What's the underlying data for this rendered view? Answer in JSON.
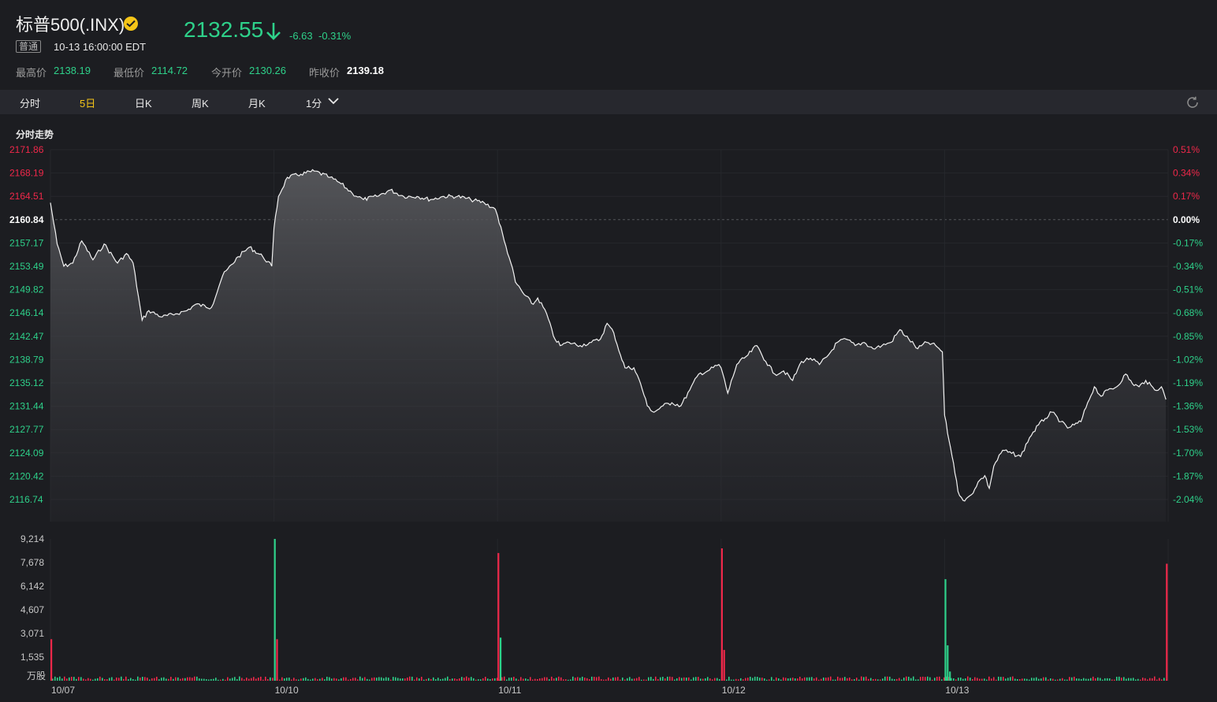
{
  "header": {
    "title": "标普500(.INX)",
    "market_tag": "普通",
    "timestamp": "10-13 16:00:00 EDT",
    "price": "2132.55",
    "change": "-6.63",
    "change_pct": "-0.31%",
    "stats": [
      {
        "label": "最高价",
        "value": "2138.19",
        "color": "#2ed18a"
      },
      {
        "label": "最低价",
        "value": "2114.72",
        "color": "#2ed18a"
      },
      {
        "label": "今开价",
        "value": "2130.26",
        "color": "#2ed18a"
      },
      {
        "label": "昨收价",
        "value": "2139.18",
        "color": "#ffffff"
      }
    ]
  },
  "tabs": [
    {
      "label": "分时",
      "active": false
    },
    {
      "label": "5日",
      "active": true
    },
    {
      "label": "日K",
      "active": false
    },
    {
      "label": "周K",
      "active": false
    },
    {
      "label": "月K",
      "active": false
    },
    {
      "label": "1分",
      "active": false
    }
  ],
  "section_title": "分时走势",
  "colors": {
    "up": "#f0284a",
    "down": "#2ed18a",
    "neutral": "#ffffff",
    "accent": "#f5c518"
  },
  "chart_data": {
    "type": "area",
    "y_ticks_price": [
      "2171.86",
      "2168.19",
      "2164.51",
      "2160.84",
      "2157.17",
      "2153.49",
      "2149.82",
      "2146.14",
      "2142.47",
      "2138.79",
      "2135.12",
      "2131.44",
      "2127.77",
      "2124.09",
      "2120.42",
      "2116.74"
    ],
    "y_ticks_pct": [
      "0.51%",
      "0.34%",
      "0.17%",
      "0.00%",
      "-0.17%",
      "-0.34%",
      "-0.51%",
      "-0.68%",
      "-0.85%",
      "-1.02%",
      "-1.19%",
      "-1.36%",
      "-1.53%",
      "-1.70%",
      "-1.87%",
      "-2.04%"
    ],
    "ylim": [
      2116.74,
      2171.86
    ],
    "reference_price": 2160.84,
    "x_labels": [
      "10/07",
      "10/10",
      "10/11",
      "10/12",
      "10/13"
    ],
    "price_keypoints": [
      {
        "day": 0,
        "frac": 0.0,
        "price": 2163.5
      },
      {
        "day": 0,
        "frac": 0.03,
        "price": 2157.0
      },
      {
        "day": 0,
        "frac": 0.06,
        "price": 2153.5
      },
      {
        "day": 0,
        "frac": 0.1,
        "price": 2154.0
      },
      {
        "day": 0,
        "frac": 0.14,
        "price": 2157.5
      },
      {
        "day": 0,
        "frac": 0.19,
        "price": 2154.5
      },
      {
        "day": 0,
        "frac": 0.24,
        "price": 2157.0
      },
      {
        "day": 0,
        "frac": 0.3,
        "price": 2154.0
      },
      {
        "day": 0,
        "frac": 0.34,
        "price": 2155.5
      },
      {
        "day": 0,
        "frac": 0.37,
        "price": 2154.0
      },
      {
        "day": 0,
        "frac": 0.41,
        "price": 2145.0
      },
      {
        "day": 0,
        "frac": 0.44,
        "price": 2146.5
      },
      {
        "day": 0,
        "frac": 0.5,
        "price": 2145.5
      },
      {
        "day": 0,
        "frac": 0.56,
        "price": 2146.0
      },
      {
        "day": 0,
        "frac": 0.61,
        "price": 2146.5
      },
      {
        "day": 0,
        "frac": 0.65,
        "price": 2147.5
      },
      {
        "day": 0,
        "frac": 0.72,
        "price": 2147.0
      },
      {
        "day": 0,
        "frac": 0.77,
        "price": 2152.0
      },
      {
        "day": 0,
        "frac": 0.84,
        "price": 2155.0
      },
      {
        "day": 0,
        "frac": 0.89,
        "price": 2156.5
      },
      {
        "day": 0,
        "frac": 0.95,
        "price": 2155.0
      },
      {
        "day": 0,
        "frac": 0.99,
        "price": 2153.5
      },
      {
        "day": 1,
        "frac": 0.0,
        "price": 2159.5
      },
      {
        "day": 1,
        "frac": 0.02,
        "price": 2164.5
      },
      {
        "day": 1,
        "frac": 0.06,
        "price": 2167.5
      },
      {
        "day": 1,
        "frac": 0.12,
        "price": 2168.0
      },
      {
        "day": 1,
        "frac": 0.18,
        "price": 2168.5
      },
      {
        "day": 1,
        "frac": 0.25,
        "price": 2167.5
      },
      {
        "day": 1,
        "frac": 0.3,
        "price": 2166.5
      },
      {
        "day": 1,
        "frac": 0.35,
        "price": 2165.0
      },
      {
        "day": 1,
        "frac": 0.4,
        "price": 2164.0
      },
      {
        "day": 1,
        "frac": 0.46,
        "price": 2164.5
      },
      {
        "day": 1,
        "frac": 0.52,
        "price": 2165.5
      },
      {
        "day": 1,
        "frac": 0.58,
        "price": 2164.5
      },
      {
        "day": 1,
        "frac": 0.64,
        "price": 2164.5
      },
      {
        "day": 1,
        "frac": 0.7,
        "price": 2164.0
      },
      {
        "day": 1,
        "frac": 0.76,
        "price": 2164.5
      },
      {
        "day": 1,
        "frac": 0.82,
        "price": 2164.5
      },
      {
        "day": 1,
        "frac": 0.88,
        "price": 2164.0
      },
      {
        "day": 1,
        "frac": 0.94,
        "price": 2163.5
      },
      {
        "day": 1,
        "frac": 0.99,
        "price": 2162.5
      },
      {
        "day": 2,
        "frac": 0.0,
        "price": 2161.5
      },
      {
        "day": 2,
        "frac": 0.03,
        "price": 2157.5
      },
      {
        "day": 2,
        "frac": 0.06,
        "price": 2154.0
      },
      {
        "day": 2,
        "frac": 0.08,
        "price": 2151.0
      },
      {
        "day": 2,
        "frac": 0.12,
        "price": 2149.0
      },
      {
        "day": 2,
        "frac": 0.16,
        "price": 2147.5
      },
      {
        "day": 2,
        "frac": 0.18,
        "price": 2148.5
      },
      {
        "day": 2,
        "frac": 0.22,
        "price": 2146.0
      },
      {
        "day": 2,
        "frac": 0.25,
        "price": 2142.5
      },
      {
        "day": 2,
        "frac": 0.28,
        "price": 2141.0
      },
      {
        "day": 2,
        "frac": 0.32,
        "price": 2141.5
      },
      {
        "day": 2,
        "frac": 0.37,
        "price": 2141.0
      },
      {
        "day": 2,
        "frac": 0.42,
        "price": 2141.5
      },
      {
        "day": 2,
        "frac": 0.46,
        "price": 2142.0
      },
      {
        "day": 2,
        "frac": 0.49,
        "price": 2144.5
      },
      {
        "day": 2,
        "frac": 0.52,
        "price": 2143.0
      },
      {
        "day": 2,
        "frac": 0.55,
        "price": 2139.5
      },
      {
        "day": 2,
        "frac": 0.57,
        "price": 2137.5
      },
      {
        "day": 2,
        "frac": 0.61,
        "price": 2137.5
      },
      {
        "day": 2,
        "frac": 0.64,
        "price": 2135.0
      },
      {
        "day": 2,
        "frac": 0.67,
        "price": 2131.5
      },
      {
        "day": 2,
        "frac": 0.7,
        "price": 2130.5
      },
      {
        "day": 2,
        "frac": 0.74,
        "price": 2131.5
      },
      {
        "day": 2,
        "frac": 0.78,
        "price": 2132.0
      },
      {
        "day": 2,
        "frac": 0.82,
        "price": 2131.5
      },
      {
        "day": 2,
        "frac": 0.86,
        "price": 2134.0
      },
      {
        "day": 2,
        "frac": 0.9,
        "price": 2136.5
      },
      {
        "day": 2,
        "frac": 0.94,
        "price": 2137.0
      },
      {
        "day": 2,
        "frac": 0.99,
        "price": 2138.0
      },
      {
        "day": 3,
        "frac": 0.0,
        "price": 2137.5
      },
      {
        "day": 3,
        "frac": 0.03,
        "price": 2133.5
      },
      {
        "day": 3,
        "frac": 0.07,
        "price": 2138.0
      },
      {
        "day": 3,
        "frac": 0.12,
        "price": 2139.5
      },
      {
        "day": 3,
        "frac": 0.16,
        "price": 2141.0
      },
      {
        "day": 3,
        "frac": 0.2,
        "price": 2138.5
      },
      {
        "day": 3,
        "frac": 0.24,
        "price": 2136.5
      },
      {
        "day": 3,
        "frac": 0.28,
        "price": 2137.0
      },
      {
        "day": 3,
        "frac": 0.32,
        "price": 2135.5
      },
      {
        "day": 3,
        "frac": 0.36,
        "price": 2138.5
      },
      {
        "day": 3,
        "frac": 0.4,
        "price": 2139.0
      },
      {
        "day": 3,
        "frac": 0.44,
        "price": 2138.0
      },
      {
        "day": 3,
        "frac": 0.48,
        "price": 2139.5
      },
      {
        "day": 3,
        "frac": 0.52,
        "price": 2141.5
      },
      {
        "day": 3,
        "frac": 0.56,
        "price": 2142.0
      },
      {
        "day": 3,
        "frac": 0.6,
        "price": 2141.0
      },
      {
        "day": 3,
        "frac": 0.64,
        "price": 2141.5
      },
      {
        "day": 3,
        "frac": 0.68,
        "price": 2140.5
      },
      {
        "day": 3,
        "frac": 0.72,
        "price": 2141.0
      },
      {
        "day": 3,
        "frac": 0.76,
        "price": 2141.5
      },
      {
        "day": 3,
        "frac": 0.8,
        "price": 2143.5
      },
      {
        "day": 3,
        "frac": 0.84,
        "price": 2142.0
      },
      {
        "day": 3,
        "frac": 0.88,
        "price": 2140.5
      },
      {
        "day": 3,
        "frac": 0.92,
        "price": 2141.5
      },
      {
        "day": 3,
        "frac": 0.96,
        "price": 2141.0
      },
      {
        "day": 3,
        "frac": 0.99,
        "price": 2140.0
      },
      {
        "day": 4,
        "frac": 0.0,
        "price": 2130.0
      },
      {
        "day": 4,
        "frac": 0.02,
        "price": 2126.0
      },
      {
        "day": 4,
        "frac": 0.04,
        "price": 2122.5
      },
      {
        "day": 4,
        "frac": 0.06,
        "price": 2118.0
      },
      {
        "day": 4,
        "frac": 0.09,
        "price": 2116.5
      },
      {
        "day": 4,
        "frac": 0.12,
        "price": 2117.5
      },
      {
        "day": 4,
        "frac": 0.15,
        "price": 2119.5
      },
      {
        "day": 4,
        "frac": 0.18,
        "price": 2120.5
      },
      {
        "day": 4,
        "frac": 0.2,
        "price": 2118.5
      },
      {
        "day": 4,
        "frac": 0.22,
        "price": 2122.0
      },
      {
        "day": 4,
        "frac": 0.26,
        "price": 2124.5
      },
      {
        "day": 4,
        "frac": 0.3,
        "price": 2124.0
      },
      {
        "day": 4,
        "frac": 0.34,
        "price": 2123.5
      },
      {
        "day": 4,
        "frac": 0.38,
        "price": 2126.5
      },
      {
        "day": 4,
        "frac": 0.42,
        "price": 2128.5
      },
      {
        "day": 4,
        "frac": 0.45,
        "price": 2129.5
      },
      {
        "day": 4,
        "frac": 0.48,
        "price": 2130.5
      },
      {
        "day": 4,
        "frac": 0.52,
        "price": 2129.0
      },
      {
        "day": 4,
        "frac": 0.55,
        "price": 2128.0
      },
      {
        "day": 4,
        "frac": 0.58,
        "price": 2128.5
      },
      {
        "day": 4,
        "frac": 0.61,
        "price": 2129.0
      },
      {
        "day": 4,
        "frac": 0.64,
        "price": 2132.0
      },
      {
        "day": 4,
        "frac": 0.67,
        "price": 2134.5
      },
      {
        "day": 4,
        "frac": 0.7,
        "price": 2133.0
      },
      {
        "day": 4,
        "frac": 0.73,
        "price": 2134.0
      },
      {
        "day": 4,
        "frac": 0.77,
        "price": 2134.5
      },
      {
        "day": 4,
        "frac": 0.81,
        "price": 2136.5
      },
      {
        "day": 4,
        "frac": 0.84,
        "price": 2135.0
      },
      {
        "day": 4,
        "frac": 0.87,
        "price": 2134.5
      },
      {
        "day": 4,
        "frac": 0.9,
        "price": 2135.5
      },
      {
        "day": 4,
        "frac": 0.94,
        "price": 2134.0
      },
      {
        "day": 4,
        "frac": 0.97,
        "price": 2134.5
      },
      {
        "day": 4,
        "frac": 0.99,
        "price": 2132.5
      }
    ],
    "volume_ticks": [
      "9,214",
      "7,678",
      "6,142",
      "4,607",
      "3,071",
      "1,535"
    ],
    "volume_ylim": [
      0,
      9214
    ],
    "volume_unit": "万股",
    "volume_spikes": [
      {
        "day": 0,
        "frac": 0.0,
        "value": 2700,
        "color": "up"
      },
      {
        "day": 1,
        "frac": 0.0,
        "value": 9214,
        "color": "down"
      },
      {
        "day": 1,
        "frac": 0.01,
        "value": 2700,
        "color": "up"
      },
      {
        "day": 2,
        "frac": 0.0,
        "value": 8300,
        "color": "up"
      },
      {
        "day": 2,
        "frac": 0.01,
        "value": 2800,
        "color": "down"
      },
      {
        "day": 3,
        "frac": 0.0,
        "value": 8600,
        "color": "up"
      },
      {
        "day": 3,
        "frac": 0.01,
        "value": 2000,
        "color": "up"
      },
      {
        "day": 4,
        "frac": 0.0,
        "value": 6600,
        "color": "down"
      },
      {
        "day": 4,
        "frac": 0.01,
        "value": 2300,
        "color": "down"
      },
      {
        "day": 4,
        "frac": 0.02,
        "value": 600,
        "color": "down"
      },
      {
        "day": 4,
        "frac": 0.99,
        "value": 7600,
        "color": "up"
      }
    ]
  }
}
